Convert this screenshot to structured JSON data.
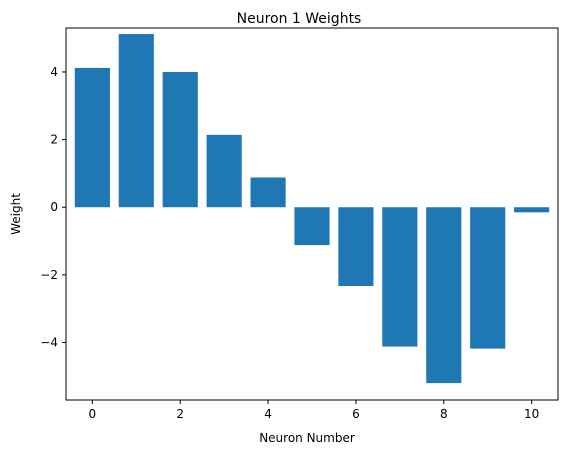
{
  "chart_data": {
    "type": "bar",
    "title": "Neuron 1 Weights",
    "xlabel": "Neuron Number",
    "ylabel": "Weight",
    "x": [
      0,
      1,
      2,
      3,
      4,
      5,
      6,
      7,
      8,
      9,
      10
    ],
    "values": [
      4.12,
      5.12,
      4.0,
      2.14,
      0.88,
      -1.12,
      -2.33,
      -4.12,
      -5.2,
      -4.18,
      -0.15
    ],
    "xlim": [
      -0.6,
      10.6
    ],
    "ylim": [
      -5.7,
      5.3
    ],
    "xticks": [
      0,
      2,
      4,
      6,
      8,
      10
    ],
    "yticks": [
      -4,
      -2,
      0,
      2,
      4
    ],
    "ytick_labels": [
      "−4",
      "−2",
      "0",
      "2",
      "4"
    ],
    "bar_color": "#1f77b4",
    "grid": false,
    "legend": false
  }
}
